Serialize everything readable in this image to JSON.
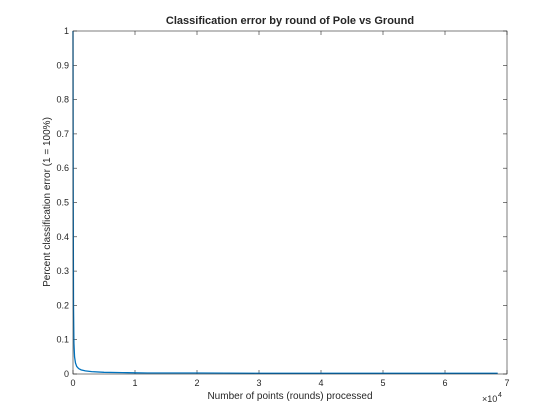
{
  "chart_data": {
    "type": "line",
    "title": "Classification error by round of Pole vs Ground",
    "xlabel": "Number of points (rounds) processed",
    "ylabel": "Percent classification error (1 = 100%)",
    "x_exponent_label": "×10",
    "x_exponent_power": "4",
    "xlim": [
      0,
      7
    ],
    "ylim": [
      0,
      1
    ],
    "xticks": [
      0,
      1,
      2,
      3,
      4,
      5,
      6,
      7
    ],
    "yticks": [
      0,
      0.1,
      0.2,
      0.3,
      0.4,
      0.5,
      0.6,
      0.7,
      0.8,
      0.9,
      1
    ],
    "xtick_labels": [
      "0",
      "1",
      "2",
      "3",
      "4",
      "5",
      "6",
      "7"
    ],
    "ytick_labels": [
      "0",
      "0.1",
      "0.2",
      "0.3",
      "0.4",
      "0.5",
      "0.6",
      "0.7",
      "0.8",
      "0.9",
      "1"
    ],
    "grid": false,
    "line_color": "#0072bd",
    "series": [
      {
        "x": [
          0,
          0.003,
          0.008,
          0.015,
          0.025,
          0.04,
          0.06,
          0.09,
          0.13,
          0.2,
          0.3,
          0.5,
          0.8,
          1.2,
          2.0,
          3.0,
          4.0,
          5.0,
          6.0,
          6.85
        ],
        "y": [
          1.0,
          0.55,
          0.2,
          0.09,
          0.05,
          0.032,
          0.022,
          0.016,
          0.012,
          0.009,
          0.007,
          0.005,
          0.004,
          0.003,
          0.003,
          0.002,
          0.002,
          0.002,
          0.002,
          0.002
        ]
      }
    ]
  }
}
